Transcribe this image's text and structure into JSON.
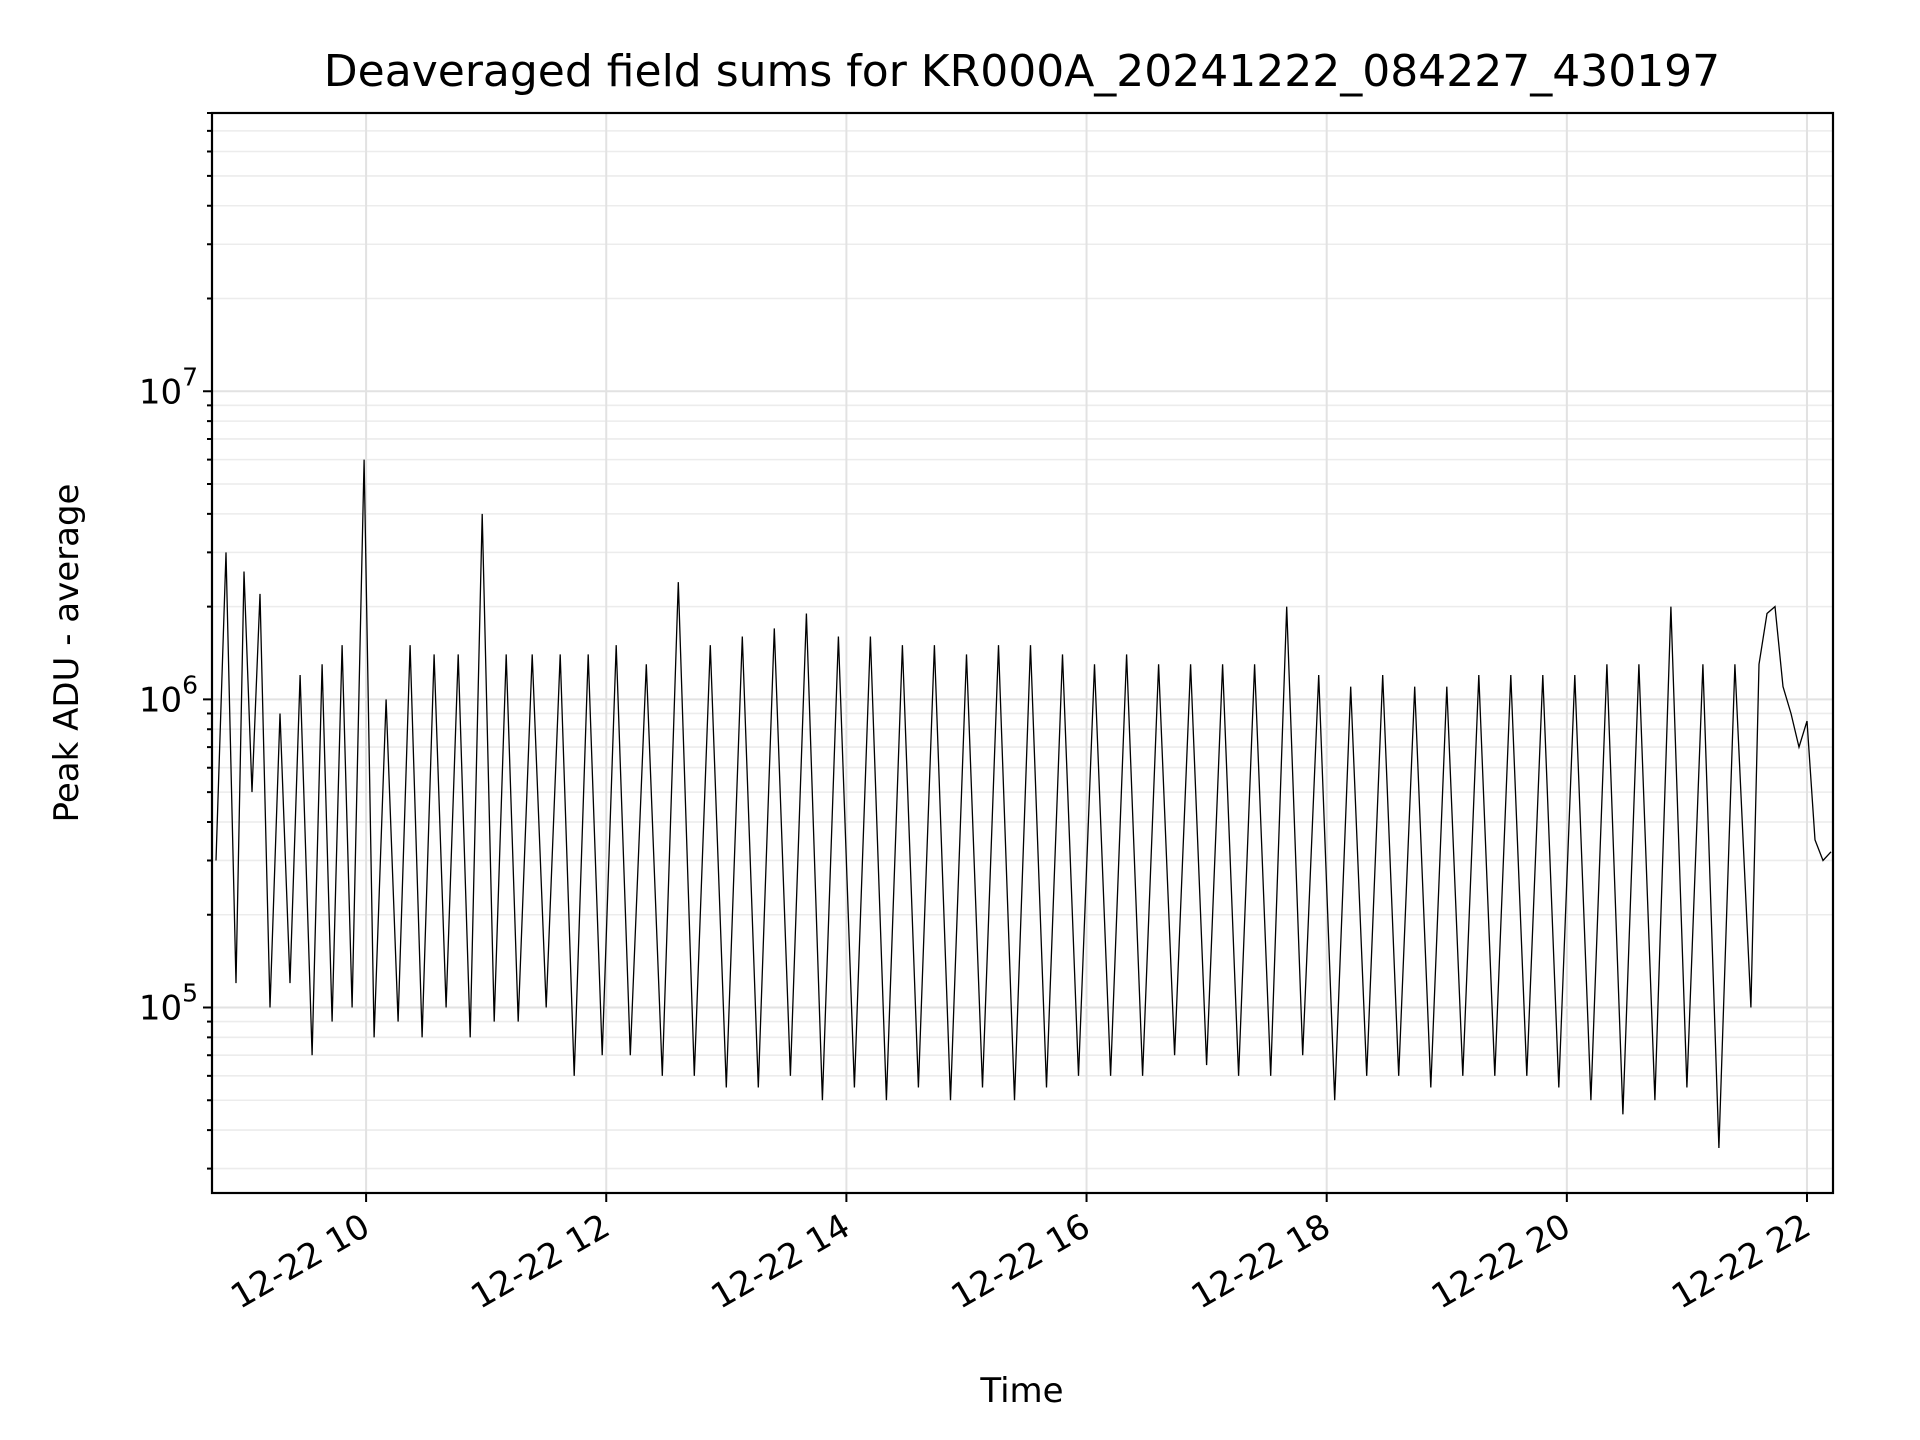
{
  "chart_data": {
    "type": "line",
    "title": "Deaveraged field sums for KR000A_20241222_084227_430197",
    "xlabel": "Time",
    "ylabel": "Peak ADU - average",
    "y_scale": "log",
    "ylim": [
      25000,
      80000000
    ],
    "xlim": [
      "2024-12-22 08:43",
      "2024-12-22 22:13"
    ],
    "x_ticks": [
      {
        "value": "2024-12-22 10:00",
        "label": "12-22 10"
      },
      {
        "value": "2024-12-22 12:00",
        "label": "12-22 12"
      },
      {
        "value": "2024-12-22 14:00",
        "label": "12-22 14"
      },
      {
        "value": "2024-12-22 16:00",
        "label": "12-22 16"
      },
      {
        "value": "2024-12-22 18:00",
        "label": "12-22 18"
      },
      {
        "value": "2024-12-22 20:00",
        "label": "12-22 20"
      },
      {
        "value": "2024-12-22 22:00",
        "label": "12-22 22"
      }
    ],
    "y_ticks": [
      {
        "value": 100000,
        "base": "10",
        "exp": "5"
      },
      {
        "value": 1000000,
        "base": "10",
        "exp": "6"
      },
      {
        "value": 10000000,
        "base": "10",
        "exp": "7"
      }
    ],
    "grid": true,
    "series": [
      {
        "color": "#000000",
        "x": [
          "2024-12-22 08:45",
          "2024-12-22 08:50",
          "2024-12-22 08:55",
          "2024-12-22 08:59",
          "2024-12-22 09:03",
          "2024-12-22 09:07",
          "2024-12-22 09:12",
          "2024-12-22 09:17",
          "2024-12-22 09:22",
          "2024-12-22 09:27",
          "2024-12-22 09:33",
          "2024-12-22 09:38",
          "2024-12-22 09:43",
          "2024-12-22 09:48",
          "2024-12-22 09:53",
          "2024-12-22 09:59",
          "2024-12-22 10:04",
          "2024-12-22 10:10",
          "2024-12-22 10:16",
          "2024-12-22 10:22",
          "2024-12-22 10:28",
          "2024-12-22 10:34",
          "2024-12-22 10:40",
          "2024-12-22 10:46",
          "2024-12-22 10:52",
          "2024-12-22 10:58",
          "2024-12-22 11:04",
          "2024-12-22 11:10",
          "2024-12-22 11:16",
          "2024-12-22 11:23",
          "2024-12-22 11:30",
          "2024-12-22 11:37",
          "2024-12-22 11:44",
          "2024-12-22 11:51",
          "2024-12-22 11:58",
          "2024-12-22 12:05",
          "2024-12-22 12:12",
          "2024-12-22 12:20",
          "2024-12-22 12:28",
          "2024-12-22 12:36",
          "2024-12-22 12:44",
          "2024-12-22 12:52",
          "2024-12-22 13:00",
          "2024-12-22 13:08",
          "2024-12-22 13:16",
          "2024-12-22 13:24",
          "2024-12-22 13:32",
          "2024-12-22 13:40",
          "2024-12-22 13:48",
          "2024-12-22 13:56",
          "2024-12-22 14:04",
          "2024-12-22 14:12",
          "2024-12-22 14:20",
          "2024-12-22 14:28",
          "2024-12-22 14:36",
          "2024-12-22 14:44",
          "2024-12-22 14:52",
          "2024-12-22 15:00",
          "2024-12-22 15:08",
          "2024-12-22 15:16",
          "2024-12-22 15:24",
          "2024-12-22 15:32",
          "2024-12-22 15:40",
          "2024-12-22 15:48",
          "2024-12-22 15:56",
          "2024-12-22 16:04",
          "2024-12-22 16:12",
          "2024-12-22 16:20",
          "2024-12-22 16:28",
          "2024-12-22 16:36",
          "2024-12-22 16:44",
          "2024-12-22 16:52",
          "2024-12-22 17:00",
          "2024-12-22 17:08",
          "2024-12-22 17:16",
          "2024-12-22 17:24",
          "2024-12-22 17:32",
          "2024-12-22 17:40",
          "2024-12-22 17:48",
          "2024-12-22 17:56",
          "2024-12-22 18:04",
          "2024-12-22 18:12",
          "2024-12-22 18:20",
          "2024-12-22 18:28",
          "2024-12-22 18:36",
          "2024-12-22 18:44",
          "2024-12-22 18:52",
          "2024-12-22 19:00",
          "2024-12-22 19:08",
          "2024-12-22 19:16",
          "2024-12-22 19:24",
          "2024-12-22 19:32",
          "2024-12-22 19:40",
          "2024-12-22 19:48",
          "2024-12-22 19:56",
          "2024-12-22 20:04",
          "2024-12-22 20:12",
          "2024-12-22 20:20",
          "2024-12-22 20:28",
          "2024-12-22 20:36",
          "2024-12-22 20:44",
          "2024-12-22 20:52",
          "2024-12-22 21:00",
          "2024-12-22 21:08",
          "2024-12-22 21:16",
          "2024-12-22 21:24",
          "2024-12-22 21:32",
          "2024-12-22 21:36",
          "2024-12-22 21:40",
          "2024-12-22 21:44",
          "2024-12-22 21:48",
          "2024-12-22 21:52",
          "2024-12-22 21:56",
          "2024-12-22 22:00",
          "2024-12-22 22:04",
          "2024-12-22 22:08",
          "2024-12-22 22:12"
        ],
        "y": [
          300000,
          3000000,
          120000,
          2600000,
          500000,
          2200000,
          100000,
          900000,
          120000,
          1200000,
          70000,
          1300000,
          90000,
          1500000,
          100000,
          6000000,
          80000,
          1000000,
          90000,
          1500000,
          80000,
          1400000,
          100000,
          1400000,
          80000,
          4000000,
          90000,
          1400000,
          90000,
          1400000,
          100000,
          1400000,
          60000,
          1400000,
          70000,
          1500000,
          70000,
          1300000,
          60000,
          2400000,
          60000,
          1500000,
          55000,
          1600000,
          55000,
          1700000,
          60000,
          1900000,
          50000,
          1600000,
          55000,
          1600000,
          50000,
          1500000,
          55000,
          1500000,
          50000,
          1400000,
          55000,
          1500000,
          50000,
          1500000,
          55000,
          1400000,
          60000,
          1300000,
          60000,
          1400000,
          60000,
          1300000,
          70000,
          1300000,
          65000,
          1300000,
          60000,
          1300000,
          60000,
          2000000,
          70000,
          1200000,
          50000,
          1100000,
          60000,
          1200000,
          60000,
          1100000,
          55000,
          1100000,
          60000,
          1200000,
          60000,
          1200000,
          60000,
          1200000,
          55000,
          1200000,
          50000,
          1300000,
          45000,
          1300000,
          50000,
          2000000,
          55000,
          1300000,
          35000,
          1300000,
          100000,
          1300000,
          1900000,
          2000000,
          1100000,
          900000,
          700000,
          850000,
          350000,
          300000,
          320000
        ]
      }
    ]
  }
}
